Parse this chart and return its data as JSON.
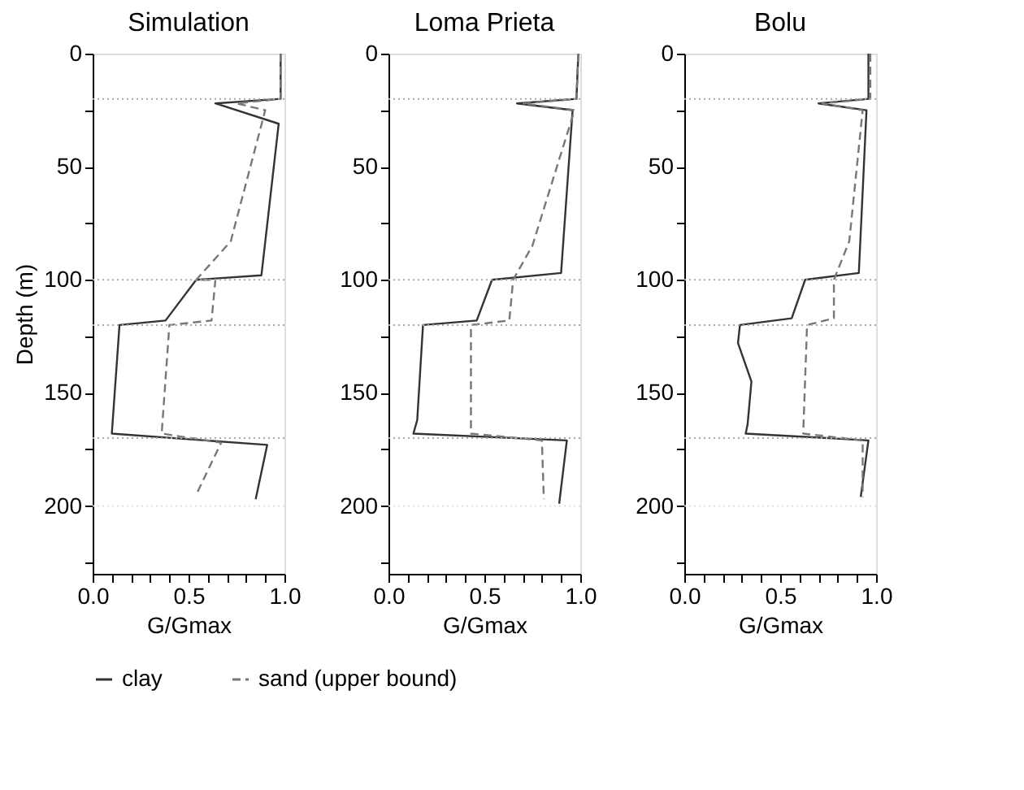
{
  "chart_data": [
    {
      "type": "line",
      "title": "Simulation",
      "xlabel": "G/Gmax",
      "ylabel": "Depth (m)",
      "xlim": [
        0,
        1
      ],
      "ylim": [
        230,
        0
      ],
      "xticks": [
        {
          "value": 0,
          "label": "0.0"
        },
        {
          "value": 0.1,
          "label": null
        },
        {
          "value": 0.2,
          "label": null
        },
        {
          "value": 0.3,
          "label": null
        },
        {
          "value": 0.4,
          "label": null
        },
        {
          "value": 0.5,
          "label": "0.5"
        },
        {
          "value": 0.6,
          "label": null
        },
        {
          "value": 0.7,
          "label": null
        },
        {
          "value": 0.8,
          "label": null
        },
        {
          "value": 0.9,
          "label": null
        },
        {
          "value": 1,
          "label": "1.0"
        }
      ],
      "yticks": [
        0,
        {
          "value": 25,
          "label": null
        },
        50,
        {
          "value": 75,
          "label": null
        },
        100,
        {
          "value": 125,
          "label": null
        },
        150,
        {
          "value": 175,
          "label": null
        },
        200,
        {
          "value": 225,
          "label": null
        }
      ],
      "ref_lines": [
        {
          "axis": "y",
          "value": 20,
          "color": "#aaaaaa",
          "line_style": "dotted"
        },
        {
          "axis": "y",
          "value": 100,
          "color": "#aaaaaa",
          "line_style": "dotted"
        },
        {
          "axis": "y",
          "value": 120,
          "color": "#aaaaaa",
          "line_style": "dotted"
        },
        {
          "axis": "y",
          "value": 170,
          "color": "#aaaaaa",
          "line_style": "dotted"
        },
        {
          "axis": "y",
          "value": 200,
          "color": "#dddddd",
          "line_style": "dotted"
        }
      ],
      "legend": "bottom",
      "marker": "none",
      "series": [
        {
          "name": "clay",
          "color": "#333333",
          "line_style": "solid",
          "x": [
            0.98,
            0.98,
            0.64,
            0.97,
            0.88,
            0.54,
            0.38,
            0.14,
            0.1,
            0.91,
            0.85
          ],
          "values": [
            0,
            20,
            22,
            31,
            98,
            100,
            118,
            120,
            168,
            173,
            197
          ]
        },
        {
          "name": "sand (upper bound)",
          "color": "#777777",
          "line_style": "dashed",
          "x": [
            0.98,
            0.98,
            0.75,
            0.9,
            0.72,
            0.54,
            0.64,
            0.62,
            0.4,
            0.36,
            0.67,
            0.54
          ],
          "values": [
            0,
            20,
            22,
            25,
            83,
            100,
            100,
            118,
            120,
            168,
            172,
            195
          ]
        }
      ]
    },
    {
      "type": "line",
      "title": "Loma Prieta",
      "xlabel": "G/Gmax",
      "xlim": [
        0,
        1
      ],
      "ylim": [
        230,
        0
      ],
      "xticks": [
        {
          "value": 0,
          "label": "0.0"
        },
        {
          "value": 0.1,
          "label": null
        },
        {
          "value": 0.2,
          "label": null
        },
        {
          "value": 0.3,
          "label": null
        },
        {
          "value": 0.4,
          "label": null
        },
        {
          "value": 0.5,
          "label": "0.5"
        },
        {
          "value": 0.6,
          "label": null
        },
        {
          "value": 0.7,
          "label": null
        },
        {
          "value": 0.8,
          "label": null
        },
        {
          "value": 0.9,
          "label": null
        },
        {
          "value": 1,
          "label": "1.0"
        }
      ],
      "yticks": [
        0,
        {
          "value": 25,
          "label": null
        },
        50,
        {
          "value": 75,
          "label": null
        },
        100,
        {
          "value": 125,
          "label": null
        },
        150,
        {
          "value": 175,
          "label": null
        },
        200,
        {
          "value": 225,
          "label": null
        }
      ],
      "ref_lines": [
        {
          "axis": "y",
          "value": 20,
          "color": "#aaaaaa",
          "line_style": "dotted"
        },
        {
          "axis": "y",
          "value": 100,
          "color": "#aaaaaa",
          "line_style": "dotted"
        },
        {
          "axis": "y",
          "value": 120,
          "color": "#aaaaaa",
          "line_style": "dotted"
        },
        {
          "axis": "y",
          "value": 170,
          "color": "#aaaaaa",
          "line_style": "dotted"
        },
        {
          "axis": "y",
          "value": 200,
          "color": "#dddddd",
          "line_style": "dotted"
        }
      ],
      "legend": "bottom",
      "marker": "none",
      "series": [
        {
          "name": "clay",
          "color": "#333333",
          "line_style": "solid",
          "x": [
            0.99,
            0.98,
            0.67,
            0.96,
            0.9,
            0.54,
            0.46,
            0.18,
            0.15,
            0.13,
            0.93,
            0.89
          ],
          "values": [
            0,
            20,
            22,
            25,
            97,
            100,
            118,
            120,
            162,
            168,
            171,
            199
          ]
        },
        {
          "name": "sand (upper bound)",
          "color": "#777777",
          "line_style": "dashed",
          "x": [
            0.99,
            0.98,
            0.7,
            0.97,
            0.75,
            0.65,
            0.63,
            0.43,
            0.43,
            0.8,
            0.81
          ],
          "values": [
            0,
            20,
            22,
            25,
            85,
            100,
            118,
            120,
            168,
            171,
            197
          ]
        }
      ]
    },
    {
      "type": "line",
      "title": "Bolu",
      "xlabel": "G/Gmax",
      "xlim": [
        0,
        1
      ],
      "ylim": [
        230,
        0
      ],
      "xticks": [
        {
          "value": 0,
          "label": "0.0"
        },
        {
          "value": 0.1,
          "label": null
        },
        {
          "value": 0.2,
          "label": null
        },
        {
          "value": 0.3,
          "label": null
        },
        {
          "value": 0.4,
          "label": null
        },
        {
          "value": 0.5,
          "label": "0.5"
        },
        {
          "value": 0.6,
          "label": null
        },
        {
          "value": 0.7,
          "label": null
        },
        {
          "value": 0.8,
          "label": null
        },
        {
          "value": 0.9,
          "label": null
        },
        {
          "value": 1,
          "label": "1.0"
        }
      ],
      "yticks": [
        0,
        {
          "value": 25,
          "label": null
        },
        50,
        {
          "value": 75,
          "label": null
        },
        100,
        {
          "value": 125,
          "label": null
        },
        150,
        {
          "value": 175,
          "label": null
        },
        200,
        {
          "value": 225,
          "label": null
        }
      ],
      "ref_lines": [
        {
          "axis": "y",
          "value": 20,
          "color": "#aaaaaa",
          "line_style": "dotted"
        },
        {
          "axis": "y",
          "value": 100,
          "color": "#aaaaaa",
          "line_style": "dotted"
        },
        {
          "axis": "y",
          "value": 120,
          "color": "#aaaaaa",
          "line_style": "dotted"
        },
        {
          "axis": "y",
          "value": 170,
          "color": "#aaaaaa",
          "line_style": "dotted"
        },
        {
          "axis": "y",
          "value": 200,
          "color": "#dddddd",
          "line_style": "dotted"
        }
      ],
      "legend": "bottom",
      "marker": "none",
      "series": [
        {
          "name": "clay",
          "color": "#333333",
          "line_style": "solid",
          "x": [
            0.96,
            0.96,
            0.7,
            0.95,
            0.91,
            0.63,
            0.56,
            0.29,
            0.28,
            0.35,
            0.33,
            0.32,
            0.96,
            0.92
          ],
          "values": [
            0,
            20,
            22,
            25,
            97,
            100,
            117,
            120,
            128,
            145,
            164,
            168,
            171,
            196
          ]
        },
        {
          "name": "sand (upper bound)",
          "color": "#777777",
          "line_style": "dashed",
          "x": [
            0.97,
            0.97,
            0.72,
            0.93,
            0.86,
            0.78,
            0.78,
            0.64,
            0.62,
            0.93,
            0.93
          ],
          "values": [
            0,
            20,
            22,
            25,
            83,
            100,
            117,
            120,
            168,
            171,
            196
          ]
        }
      ]
    }
  ]
}
